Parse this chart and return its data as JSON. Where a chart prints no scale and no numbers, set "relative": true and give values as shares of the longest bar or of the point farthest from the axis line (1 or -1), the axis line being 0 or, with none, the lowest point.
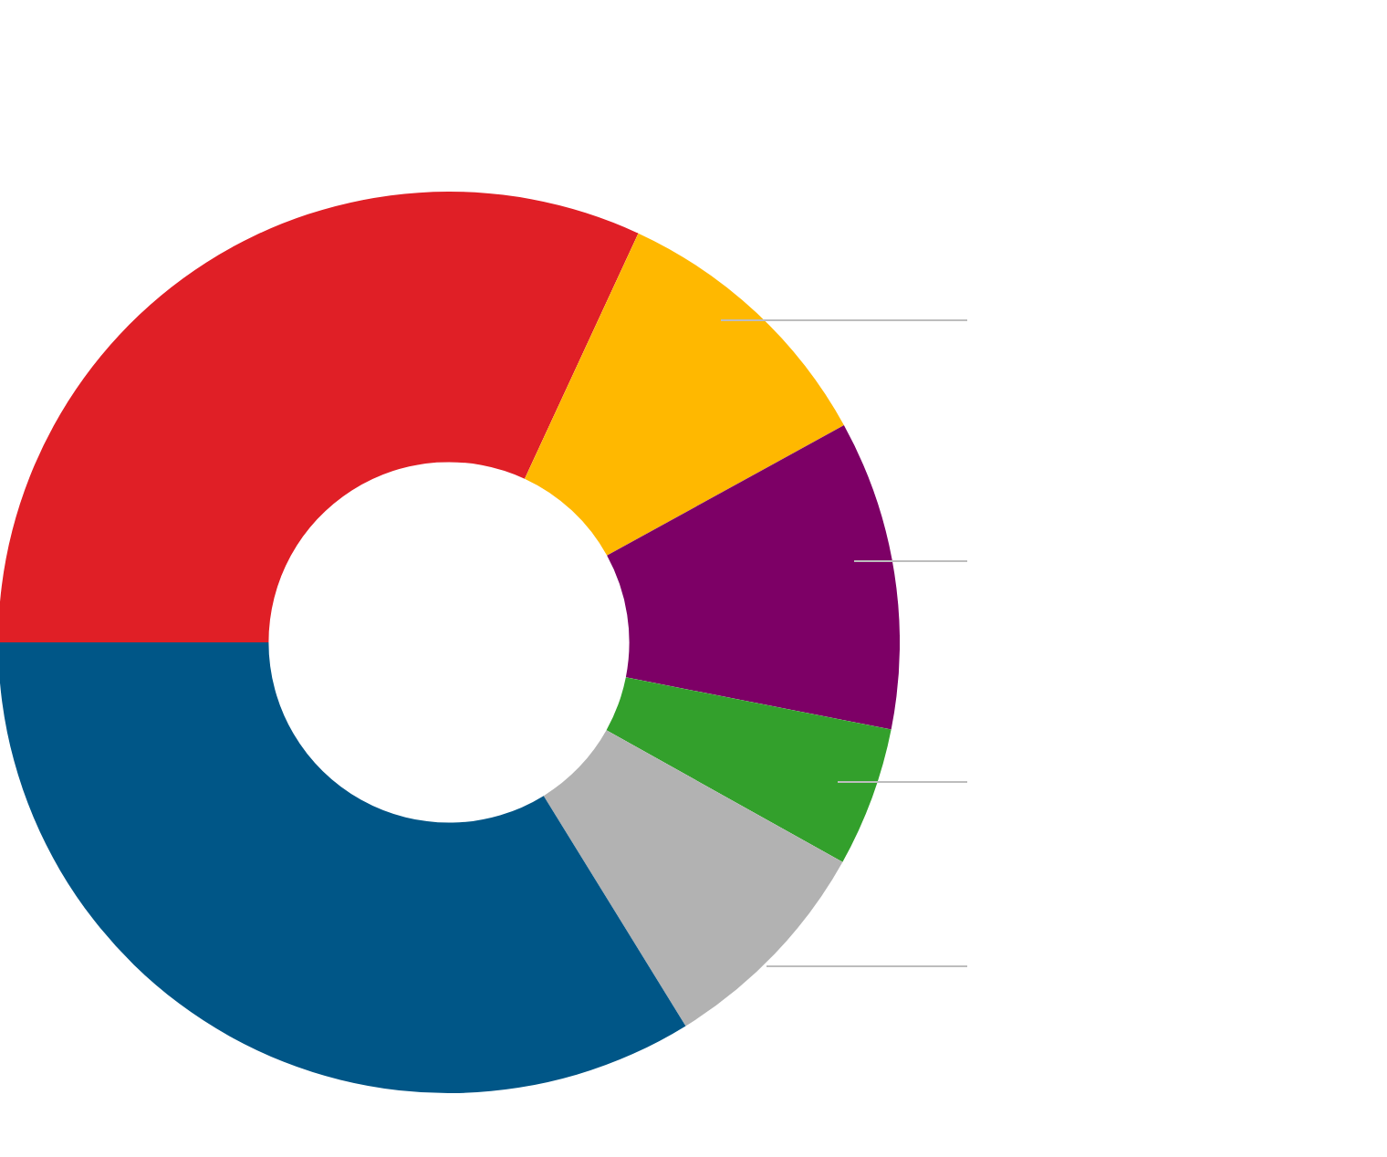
{
  "chart_data": {
    "type": "donut",
    "relative": true,
    "categories": [
      null,
      null,
      null,
      null,
      null,
      null
    ],
    "values": [
      31.9,
      10.1,
      11.1,
      5.0,
      8.1,
      33.8
    ],
    "colors": [
      "#e01f26",
      "#ffb800",
      "#7d0066",
      "#33a02c",
      "#b2b2b2",
      "#005687"
    ],
    "legend": false
  }
}
